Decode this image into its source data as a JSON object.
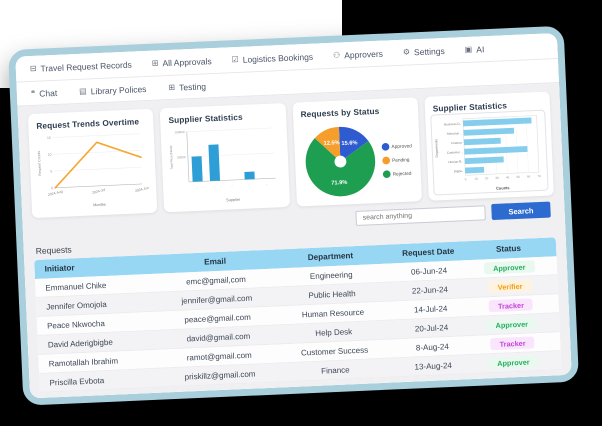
{
  "nav": {
    "row1": [
      {
        "icon": "calendar-icon",
        "label": "Travel Request Records"
      },
      {
        "icon": "grid-icon",
        "label": "All Approvals"
      },
      {
        "icon": "checkbox-icon",
        "label": "Logistics Bookings"
      },
      {
        "icon": "user-icon",
        "label": "Approvers"
      },
      {
        "icon": "gear-icon",
        "label": "Settings"
      },
      {
        "icon": "ai-icon",
        "label": "AI"
      }
    ],
    "row2": [
      {
        "icon": "chat-icon",
        "label": "Chat"
      },
      {
        "icon": "library-icon",
        "label": "Library Polices"
      },
      {
        "icon": "testing-icon",
        "label": "Testing"
      }
    ]
  },
  "chart_data": [
    {
      "type": "line",
      "title": "Request Trends Overtime",
      "x": [
        "2024-Aug",
        "2024-Jul",
        "2024-Jun"
      ],
      "values": [
        0,
        13,
        8
      ],
      "xlabel": "Months",
      "ylabel": "Request Counts",
      "ylim": [
        0,
        15
      ],
      "yticks": [
        0,
        5,
        10,
        15
      ],
      "color": "#f5a833",
      "grid": true
    },
    {
      "type": "bar",
      "title": "Supplier Statistics",
      "categories": [
        "..",
        "..",
        "..",
        "..",
        ".."
      ],
      "values": [
        50000,
        72000,
        0,
        15000,
        0
      ],
      "xlabel": "Supplier",
      "ylabel": "Total Price (Naira)",
      "ylim": [
        0,
        100000
      ],
      "yticks": [
        50000,
        100000
      ],
      "color": "#2e9fd6",
      "grid": false
    },
    {
      "type": "pie",
      "title": "Requests by Status",
      "slices": [
        {
          "label": "Approved",
          "value": 15.6,
          "color": "#2f5bd0",
          "data_label": "15.6%"
        },
        {
          "label": "Pending",
          "value": 12.5,
          "color": "#f59e2c",
          "data_label": "12.5%"
        },
        {
          "label": "Rejected",
          "value": 71.9,
          "color": "#1e9e50",
          "data_label": "71.9%"
        }
      ],
      "draw_order": [
        0,
        2,
        1
      ],
      "legend_position": "right",
      "donut_hole": true
    },
    {
      "type": "hbar",
      "title": "Supplier Statistics",
      "categories": [
        "Business D..",
        "Selection ..",
        "Finance",
        "Customer ..",
        "Human R..",
        "Digita.."
      ],
      "values": [
        65,
        48,
        35,
        60,
        37,
        18
      ],
      "xlabel": "Counts",
      "ylabel": "Departments",
      "xlim": [
        0,
        70
      ],
      "xticks": [
        0,
        10,
        20,
        30,
        40,
        50,
        60,
        70
      ],
      "color": "#85cdec",
      "grid": true
    }
  ],
  "search": {
    "placeholder": "search anything",
    "button_label": "Search"
  },
  "requests": {
    "title": "Requests",
    "columns": [
      "Initiator",
      "Email",
      "Department",
      "Request Date",
      "Status"
    ],
    "rows": [
      {
        "initiator": "Emmanuel Chike",
        "email": "emc@gmail,com",
        "department": "Engineering",
        "request_date": "06-Jun-24",
        "status": "Approver"
      },
      {
        "initiator": "Jennifer Omojola",
        "email": "jennifer@gmail.com",
        "department": "Public Health",
        "request_date": "22-Jun-24",
        "status": "Verifier"
      },
      {
        "initiator": "Peace Nkwocha",
        "email": "peace@gmail.com",
        "department": "Human Resource",
        "request_date": "14-Jul-24",
        "status": "Tracker"
      },
      {
        "initiator": "David Aderigbigbe",
        "email": "david@gmail.com",
        "department": "Help Desk",
        "request_date": "20-Jul-24",
        "status": "Approver"
      },
      {
        "initiator": "Ramotallah Ibrahim",
        "email": "ramot@gmail.com",
        "department": "Customer Success",
        "request_date": "8-Aug-24",
        "status": "Tracker"
      },
      {
        "initiator": "Priscilla Evbota",
        "email": "priskillz@gmail.com",
        "department": "Finance",
        "request_date": "13-Aug-24",
        "status": "Approver"
      }
    ],
    "status_styles": {
      "Approver": {
        "color": "#27ae60",
        "bg": "#e9f9ef"
      },
      "Verifier": {
        "color": "#f39c12",
        "bg": "#fdf3df"
      },
      "Tracker": {
        "color": "#c544d8",
        "bg": "#f9e6fc"
      }
    }
  },
  "colors": {
    "frame": "#a9cfdc",
    "content_bg": "#f0f0f2",
    "table_header_bg": "#97d7f3",
    "search_button": "#2d6bd0"
  }
}
